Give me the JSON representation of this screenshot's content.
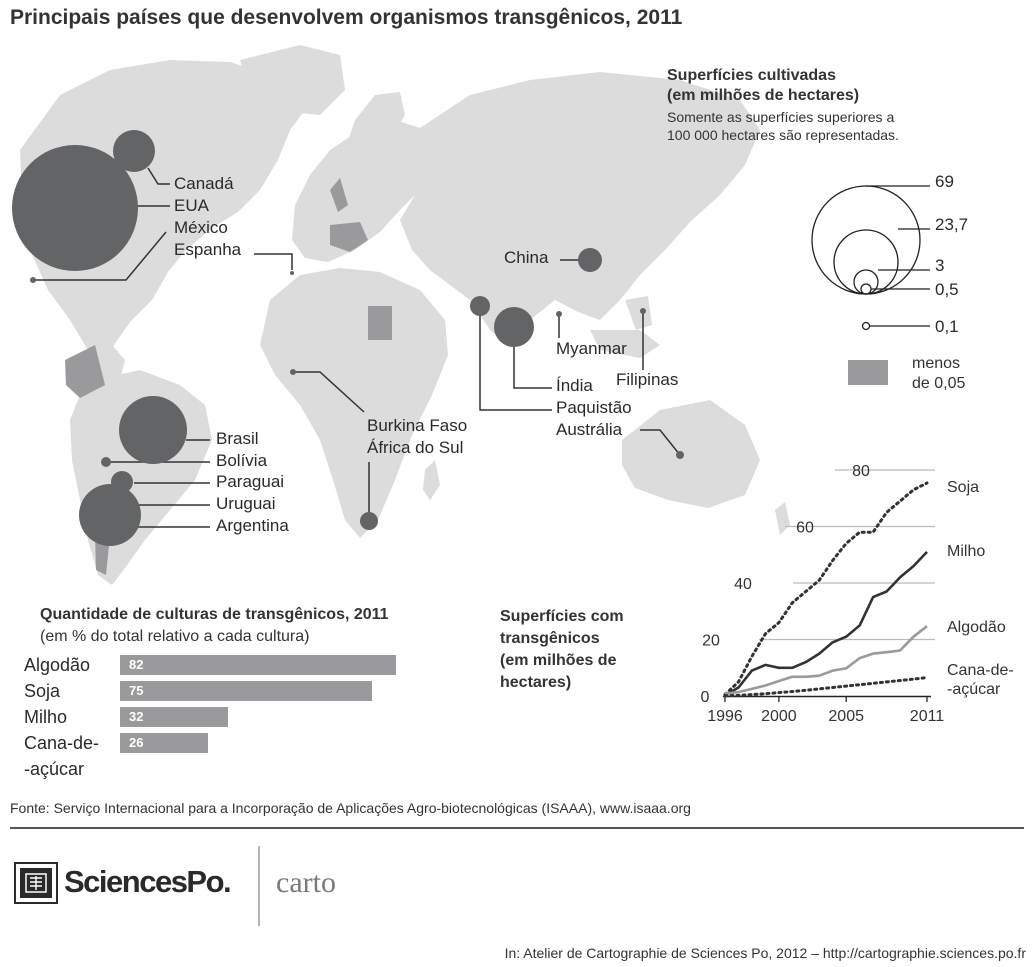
{
  "title": "Principais países que desenvolvem organismos transgênicos, 2011",
  "map": {
    "legend": {
      "title_line1": "Superfícies cultivadas",
      "title_line2": "(em milhões de hectares)",
      "note_line1": "Somente as superfícies superiores a",
      "note_line2": "100 000 hectares são representadas.",
      "sizes": [
        {
          "label": "69",
          "value": 69
        },
        {
          "label": "23,7",
          "value": 23.7
        },
        {
          "label": "3",
          "value": 3
        },
        {
          "label": "0,5",
          "value": 0.5
        },
        {
          "label": "0,1",
          "value": 0.1
        }
      ],
      "menos_line1": "menos",
      "menos_line2": "de 0,05"
    },
    "countries": [
      {
        "name": "Canadá"
      },
      {
        "name": "EUA"
      },
      {
        "name": "México"
      },
      {
        "name": "Espanha"
      },
      {
        "name": "China"
      },
      {
        "name": "Myanmar"
      },
      {
        "name": "Índia"
      },
      {
        "name": "Filipinas"
      },
      {
        "name": "Paquistão"
      },
      {
        "name": "Austrália"
      },
      {
        "name": "Burkina Faso"
      },
      {
        "name": "África do Sul"
      },
      {
        "name": "Brasil"
      },
      {
        "name": "Bolívia"
      },
      {
        "name": "Paraguai"
      },
      {
        "name": "Uruguai"
      },
      {
        "name": "Argentina"
      }
    ],
    "colors": {
      "land": "#dcdcdc",
      "circle": "#636466",
      "small_area": "#9a9a9c"
    }
  },
  "bar_panel": {
    "title": "Quantidade de culturas de transgênicos, 2011",
    "subtitle": "(em % do total relativo a cada cultura)",
    "items": [
      {
        "line1": "Algodão",
        "line2": "",
        "value": 82,
        "value_label": "82"
      },
      {
        "line1": "Soja",
        "line2": "",
        "value": 75,
        "value_label": "75"
      },
      {
        "line1": "Milho",
        "line2": "",
        "value": 32,
        "value_label": "32"
      },
      {
        "line1": "Cana-de-",
        "line2": "-açúcar",
        "value": 26,
        "value_label": "26"
      }
    ],
    "color": "#9a9a9c"
  },
  "chart_data": {
    "type": "line",
    "title_lines": [
      "Superfícies com",
      "transgênicos",
      "(em milhões de",
      "hectares)"
    ],
    "xlabel": "",
    "ylabel": "",
    "x": [
      1996,
      1997,
      1998,
      1999,
      2000,
      2001,
      2002,
      2003,
      2004,
      2005,
      2006,
      2007,
      2008,
      2009,
      2010,
      2011
    ],
    "xticks": [
      1996,
      2000,
      2005,
      2011
    ],
    "yticks": [
      0,
      20,
      40,
      60,
      80
    ],
    "ylim": [
      0,
      80
    ],
    "xlim": [
      1996,
      2011
    ],
    "series": [
      {
        "name": "Soja",
        "style": "dotted",
        "color": "#333333",
        "values": [
          0.5,
          5,
          14,
          22,
          26,
          33,
          37,
          41,
          48,
          54,
          58,
          58,
          65,
          69,
          73,
          75.4
        ]
      },
      {
        "name": "Milho",
        "style": "solid",
        "color": "#333333",
        "values": [
          0.3,
          3,
          9,
          11,
          10,
          10,
          12,
          15,
          19,
          21,
          25,
          35,
          37,
          42,
          46,
          51
        ]
      },
      {
        "name": "Algodão",
        "style": "solid",
        "color": "#9a9a9c",
        "values": [
          0.8,
          1.4,
          2.5,
          3.7,
          5.3,
          6.8,
          6.8,
          7.2,
          9,
          9.8,
          13.4,
          15,
          15.5,
          16.1,
          21,
          24.7
        ]
      },
      {
        "name": "Cana-de-\n-açúcar",
        "label_lines": [
          "Cana-de-",
          "-açúcar"
        ],
        "style": "dotted",
        "color": "#333333",
        "values": [
          0.1,
          0.2,
          0.5,
          0.8,
          1.2,
          1.6,
          2,
          2.5,
          3,
          3.5,
          4,
          4.5,
          5,
          5.5,
          6,
          6.5
        ]
      }
    ]
  },
  "source": "Fonte: Serviço Internacional para a Incorporação de Aplicações Agro-biotecnológicas (ISAAA), www.isaaa.org",
  "credit": "In: Atelier de Cartographie de Sciences Po, 2012 – http://cartographie.sciences.po.fr",
  "logo": {
    "brand": "SciencesPo.",
    "sub": "carto"
  }
}
